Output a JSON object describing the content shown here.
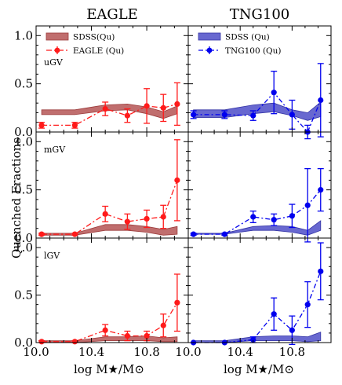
{
  "figure": {
    "ylabel": "Quenched Fractions",
    "xlabel": "log M★/M⊙",
    "x_ticks": [
      10.0,
      10.4,
      10.8
    ],
    "x_tick_labels": [
      "10.0",
      "10.4",
      "10.8"
    ],
    "x_range": [
      10.0,
      11.1
    ],
    "y_range": [
      0.0,
      1.1
    ],
    "y_ticks": [
      0.0,
      0.5,
      1.0
    ],
    "y_tick_labels": [
      "0.0",
      "0.5",
      "1.0"
    ]
  },
  "colors": {
    "eagle_band": "#b55555",
    "eagle_band_edge": "#9c3c3c",
    "eagle_points": "#ff1a1a",
    "tng_band": "#4d4dc8",
    "tng_band_edge": "#3535a6",
    "tng_points": "#0000ee"
  },
  "chart_data": {
    "type": "line",
    "x": [
      10.04,
      10.28,
      10.5,
      10.66,
      10.8,
      10.92,
      11.02
    ],
    "panels": [
      {
        "column_title": "EAGLE",
        "row_label": "uGV",
        "legend_entries": [
          "SDSS(Qu)",
          "EAGLE (Qu)"
        ],
        "band": {
          "name": "SDSS(Qu)",
          "lower": [
            0.18,
            0.18,
            0.22,
            0.23,
            0.19,
            0.14,
            0.19
          ],
          "upper": [
            0.23,
            0.23,
            0.28,
            0.29,
            0.26,
            0.21,
            0.27
          ]
        },
        "series": {
          "name": "EAGLE (Qu)",
          "y": [
            0.07,
            0.07,
            0.24,
            0.17,
            0.27,
            0.25,
            0.29
          ],
          "err": [
            0.03,
            0.03,
            0.07,
            0.07,
            0.18,
            0.14,
            0.22
          ]
        }
      },
      {
        "column_title": "TNG100",
        "row_label": "",
        "legend_entries": [
          "SDSS (Qu)",
          "TNG100 (Qu)"
        ],
        "band": {
          "name": "SDSS (Qu)",
          "lower": [
            0.15,
            0.15,
            0.19,
            0.21,
            0.17,
            0.12,
            0.16
          ],
          "upper": [
            0.23,
            0.23,
            0.28,
            0.3,
            0.23,
            0.2,
            0.31
          ]
        },
        "series": {
          "name": "TNG100 (Qu)",
          "y": [
            0.18,
            0.18,
            0.17,
            0.41,
            0.18,
            0.0,
            0.33
          ],
          "err": [
            0.04,
            0.04,
            0.05,
            0.22,
            0.15,
            0.07,
            0.38
          ]
        }
      },
      {
        "column_title": "",
        "row_label": "mGV",
        "band": {
          "name": "SDSS(Qu)",
          "lower": [
            0.03,
            0.03,
            0.08,
            0.08,
            0.06,
            0.03,
            0.04
          ],
          "upper": [
            0.05,
            0.05,
            0.14,
            0.14,
            0.12,
            0.09,
            0.12
          ]
        },
        "series": {
          "name": "EAGLE (Qu)",
          "y": [
            0.04,
            0.04,
            0.25,
            0.17,
            0.2,
            0.22,
            0.6
          ],
          "err": [
            0.01,
            0.01,
            0.08,
            0.08,
            0.09,
            0.12,
            0.42
          ]
        }
      },
      {
        "column_title": "",
        "row_label": "",
        "band": {
          "name": "SDSS (Qu)",
          "lower": [
            0.04,
            0.04,
            0.08,
            0.08,
            0.06,
            0.03,
            0.08
          ],
          "upper": [
            0.05,
            0.05,
            0.12,
            0.13,
            0.12,
            0.08,
            0.18
          ]
        },
        "series": {
          "name": "TNG100 (Qu)",
          "y": [
            0.04,
            0.04,
            0.22,
            0.19,
            0.23,
            0.34,
            0.5
          ],
          "err": [
            0.01,
            0.01,
            0.06,
            0.06,
            0.12,
            0.38,
            0.22
          ]
        }
      },
      {
        "column_title": "",
        "row_label": "lGV",
        "band": {
          "name": "SDSS(Qu)",
          "lower": [
            0.0,
            0.0,
            0.02,
            0.02,
            0.02,
            0.01,
            0.01
          ],
          "upper": [
            0.02,
            0.02,
            0.06,
            0.06,
            0.07,
            0.05,
            0.06
          ]
        },
        "series": {
          "name": "EAGLE (Qu)",
          "y": [
            0.01,
            0.01,
            0.13,
            0.07,
            0.07,
            0.18,
            0.42
          ],
          "err": [
            0.01,
            0.01,
            0.06,
            0.05,
            0.05,
            0.12,
            0.3
          ]
        }
      },
      {
        "column_title": "",
        "row_label": "",
        "band": {
          "name": "SDSS (Qu)",
          "lower": [
            0.0,
            0.0,
            0.02,
            0.02,
            0.02,
            0.01,
            0.02
          ],
          "upper": [
            0.02,
            0.02,
            0.06,
            0.07,
            0.07,
            0.06,
            0.11
          ]
        },
        "series": {
          "name": "TNG100 (Qu)",
          "y": [
            0.0,
            0.0,
            0.03,
            0.3,
            0.13,
            0.4,
            0.75
          ],
          "err": [
            0.0,
            0.0,
            0.03,
            0.17,
            0.15,
            0.24,
            0.3
          ]
        }
      }
    ]
  }
}
